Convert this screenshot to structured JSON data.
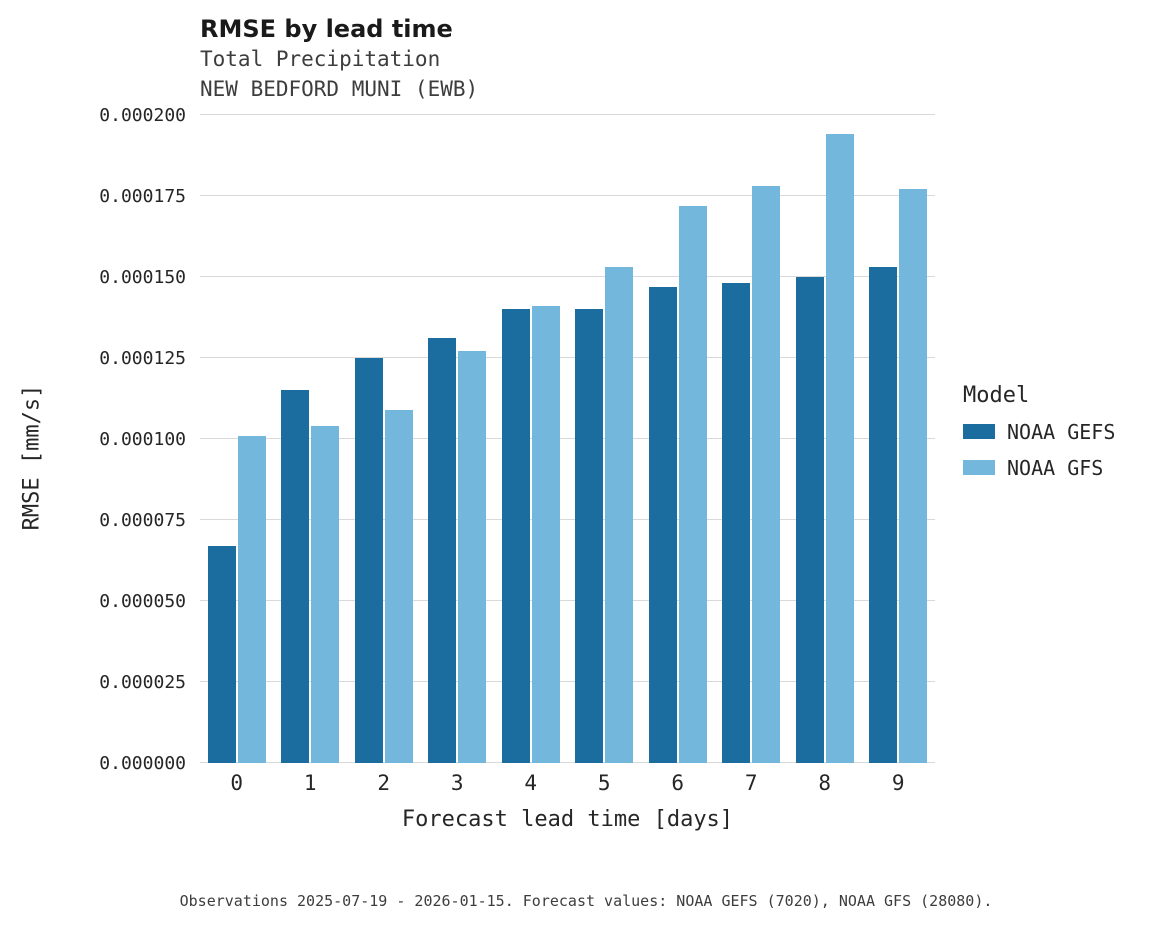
{
  "chart_data": {
    "type": "bar",
    "title": "RMSE by lead time",
    "subtitle": "Total Precipitation",
    "station": "NEW BEDFORD MUNI (EWB)",
    "xlabel": "Forecast lead time [days]",
    "ylabel": "RMSE [mm/s]",
    "legend_title": "Model",
    "categories": [
      "0",
      "1",
      "2",
      "3",
      "4",
      "5",
      "6",
      "7",
      "8",
      "9"
    ],
    "series": [
      {
        "name": "NOAA GEFS",
        "color": "#1a6d9e",
        "values": [
          6.7e-05,
          0.000115,
          0.000125,
          0.000131,
          0.00014,
          0.00014,
          0.000147,
          0.000148,
          0.00015,
          0.000153
        ]
      },
      {
        "name": "NOAA GFS",
        "color": "#74b7dd",
        "values": [
          0.000101,
          0.000104,
          0.000109,
          0.000127,
          0.000141,
          0.000153,
          0.000172,
          0.000178,
          0.000194,
          0.000177
        ]
      }
    ],
    "ylim": [
      0,
      0.0002
    ],
    "ytick_step": 2.5e-05,
    "ytick_decimals": 6,
    "grid": "horizontal",
    "legend_position": "right",
    "caption": "Observations 2025-07-19 - 2026-01-15. Forecast values: NOAA GEFS (7020), NOAA GFS (28080)."
  }
}
